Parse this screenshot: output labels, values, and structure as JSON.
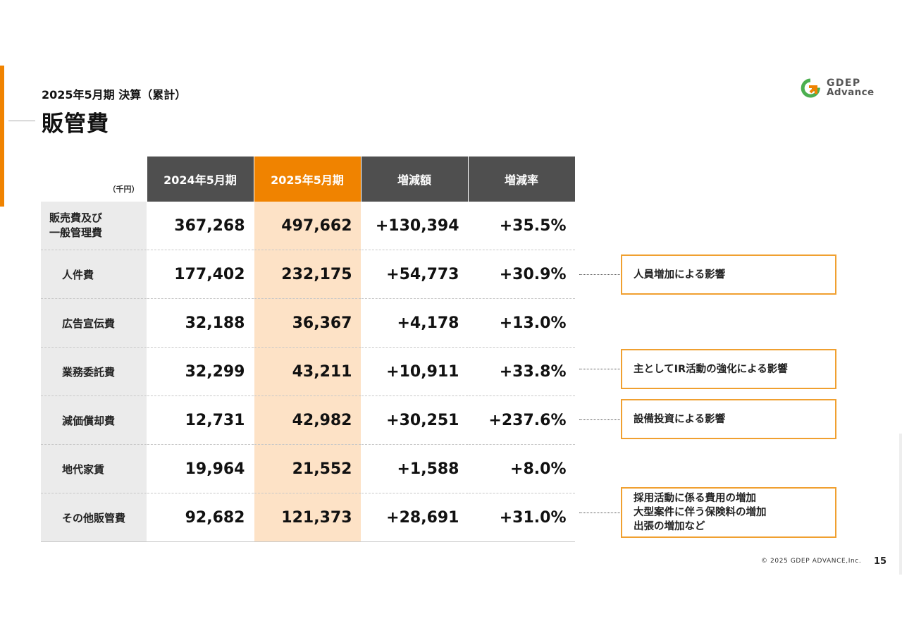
{
  "header": {
    "subtitle": "2025年5月期 決算（累計）",
    "title": "販管費",
    "logo_line1": "GDEP",
    "logo_line2": "Advance"
  },
  "table": {
    "unit": "（千円）",
    "columns": [
      "2024年5月期",
      "2025年5月期",
      "増減額",
      "増減率"
    ],
    "rows": [
      {
        "label": "販売費及び\n一般管理費",
        "values": [
          "367,268",
          "497,662",
          "+130,394",
          "+35.5%"
        ]
      },
      {
        "label": "人件費",
        "values": [
          "177,402",
          "232,175",
          "+54,773",
          "+30.9%"
        ]
      },
      {
        "label": "広告宣伝費",
        "values": [
          "32,188",
          "36,367",
          "+4,178",
          "+13.0%"
        ]
      },
      {
        "label": "業務委託費",
        "values": [
          "32,299",
          "43,211",
          "+10,911",
          "+33.8%"
        ]
      },
      {
        "label": "減価償却費",
        "values": [
          "12,731",
          "42,982",
          "+30,251",
          "+237.6%"
        ]
      },
      {
        "label": "地代家賃",
        "values": [
          "19,964",
          "21,552",
          "+1,588",
          "+8.0%"
        ]
      },
      {
        "label": "その他販管費",
        "values": [
          "92,682",
          "121,373",
          "+28,691",
          "+31.0%"
        ]
      }
    ]
  },
  "notes": {
    "personnel": "人員増加による影響",
    "outsourcing": "主としてIR活動の強化による影響",
    "depreciation": "設備投資による影響",
    "other_line1": "採用活動に係る費用の増加",
    "other_line2": "大型案件に伴う保険料の増加",
    "other_line3": "出張の増加など"
  },
  "footer": {
    "copyright": "© 2025 GDEP ADVANCE,Inc.",
    "page_number": "15"
  },
  "colors": {
    "accent": "#f08300",
    "highlight_column": "#fde2c6",
    "header_gray": "#4f4f4f"
  }
}
